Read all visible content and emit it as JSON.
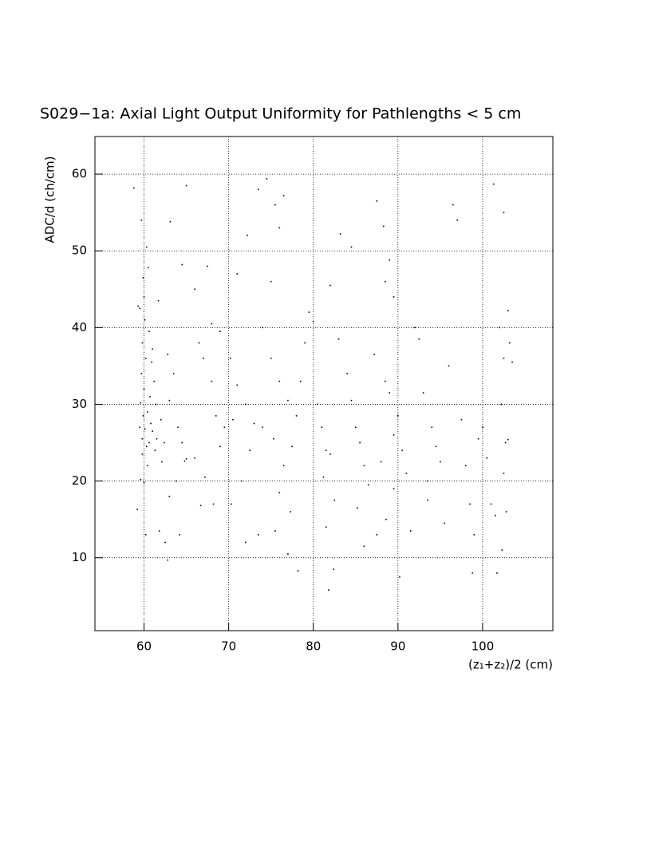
{
  "chart_data": {
    "type": "scatter",
    "title": "S029−1a: Axial Light Output Uniformity for Pathlengths < 5 cm",
    "x_label": "(z₁+z₂)/2 (cm)",
    "y_label": "ADC/d (ch/cm)",
    "xlim": [
      54.2,
      108.3
    ],
    "ylim": [
      0.5,
      64.9
    ],
    "xticks": [
      60,
      70,
      80,
      90,
      100
    ],
    "yticks": [
      10,
      20,
      30,
      40,
      50,
      60
    ],
    "grid": true,
    "color": "#000000",
    "x": [
      59.5,
      59.8,
      60.1,
      60.3,
      59.6,
      60,
      59.9,
      60.4,
      59.7,
      60.2,
      59.8,
      60.1,
      59.5,
      60,
      59.9,
      60.5,
      60.3,
      59.7,
      58.8,
      59.2,
      59.6,
      60,
      60.4,
      59.8,
      60.6,
      61,
      61.3,
      60.8,
      61.5,
      60.7,
      61.2,
      60.9,
      61.4,
      62,
      62.4,
      62.1,
      60.2,
      61.8,
      62.5,
      59.3,
      60.6,
      61.7,
      61,
      62.8,
      63.5,
      63,
      64,
      64.5,
      64.8,
      65,
      63.8,
      63,
      64.2,
      62.8,
      65,
      63.1,
      64.5,
      66,
      67.5,
      66.5,
      67,
      68,
      68.5,
      69,
      66,
      67.2,
      68.2,
      66.7,
      68,
      69,
      69.5,
      70.5,
      71,
      70.2,
      72,
      72.5,
      73,
      71.5,
      70.3,
      72,
      73.5,
      71,
      72.2,
      73.5,
      74.5,
      75.5,
      76,
      76.5,
      75,
      74,
      75,
      76,
      77,
      74,
      75.3,
      76.5,
      77.5,
      78,
      76,
      77.3,
      75.5,
      78.2,
      77,
      78.5,
      79,
      79.5,
      80,
      80.5,
      81,
      81.5,
      82,
      81.2,
      82.5,
      81.5,
      81.8,
      82.4,
      82,
      83.2,
      84.5,
      83,
      84,
      84.5,
      85,
      85.5,
      86,
      86.5,
      85.2,
      86,
      87.5,
      87.5,
      88.3,
      89,
      88.5,
      89.5,
      87.2,
      88.5,
      89,
      90,
      89.5,
      90.5,
      88,
      91,
      89.5,
      88.6,
      90.2,
      91.5,
      92,
      92.5,
      93,
      94,
      94.5,
      95,
      93.5,
      93.5,
      95.5,
      96,
      96.5,
      97,
      97.5,
      98,
      98.5,
      99,
      98.8,
      99.5,
      100,
      100.5,
      101,
      101.5,
      101.3,
      102.5,
      102,
      102.5,
      102.2,
      102.7,
      102.5,
      102.8,
      102.3,
      101.7,
      103,
      103.2,
      103.5,
      103
    ],
    "values": [
      27,
      25.5,
      26.8,
      24.5,
      30.2,
      32,
      28.5,
      29,
      34,
      36,
      38,
      41,
      42.5,
      44,
      46.5,
      47.8,
      50.5,
      54,
      58.2,
      16.3,
      20.2,
      19.8,
      22,
      23.5,
      25,
      26.5,
      24,
      27.5,
      25.5,
      31,
      33,
      35.5,
      30,
      28,
      25,
      22.5,
      13,
      13.5,
      12,
      42.8,
      39.5,
      43.5,
      37.2,
      36.5,
      34,
      30.5,
      27,
      25,
      22.6,
      22.9,
      20,
      18,
      13,
      9.7,
      58.5,
      53.8,
      48.2,
      45,
      48,
      38,
      36,
      33,
      28.5,
      24.5,
      23,
      20.5,
      17,
      16.8,
      40.5,
      39.5,
      27,
      28,
      32.5,
      36,
      30,
      24,
      27.5,
      20,
      17,
      12,
      13,
      47,
      52,
      58,
      59.4,
      56,
      53,
      57.2,
      46,
      40,
      36,
      33,
      30.5,
      27,
      25.5,
      22,
      24.5,
      28.5,
      18.5,
      16,
      13.5,
      8.3,
      10.5,
      33,
      38,
      42,
      40.8,
      30,
      27,
      24,
      23.5,
      20.5,
      17.5,
      14,
      5.8,
      8.5,
      45.5,
      52.2,
      50.5,
      38.5,
      34,
      30.5,
      27,
      25,
      22,
      19.5,
      16.5,
      11.5,
      13,
      56.5,
      53.2,
      48.8,
      46,
      44,
      36.5,
      33,
      31.5,
      28.5,
      26,
      24,
      22.5,
      21,
      19,
      15,
      7.5,
      13.5,
      40,
      38.5,
      31.5,
      27,
      24.5,
      22.5,
      20,
      17.5,
      14.5,
      35,
      56,
      54,
      28,
      22,
      17,
      13,
      8,
      25.5,
      27,
      23,
      17,
      15.5,
      58.7,
      55,
      40,
      36,
      30,
      25,
      21,
      16,
      11,
      8,
      42.2,
      38,
      35.5,
      25.4
    ]
  }
}
